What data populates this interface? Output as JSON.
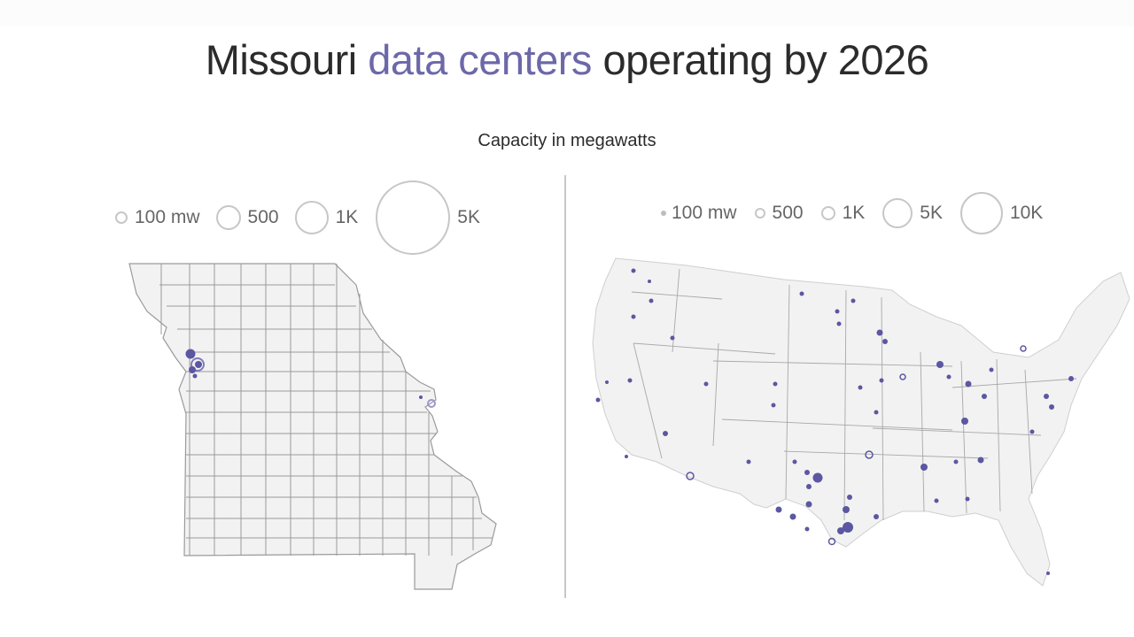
{
  "title": {
    "prefix": "Missouri ",
    "highlight": "data centers",
    "suffix": " operating by 2026"
  },
  "subtitle": "Capacity in megawatts",
  "colors": {
    "accent": "#6c68a8",
    "dot": "#5b57a1",
    "land": "#f2f2f2",
    "border": "#9a9a9a"
  },
  "legend_missouri": [
    "100 mw",
    "500",
    "1K",
    "5K"
  ],
  "legend_us": [
    "100 mw",
    "500",
    "1K",
    "5K",
    "10K"
  ]
}
